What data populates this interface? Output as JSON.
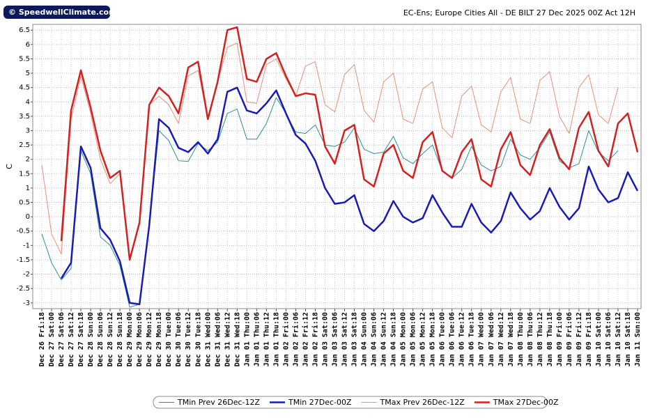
{
  "logo": "© SpeedwellClimate.com",
  "chart_data": {
    "type": "line",
    "title": "EC-Ens; Europe Cities All - DE BILT 27 Dec 2025 00Z Act 12H",
    "y_label": "C",
    "categories": [
      "Dec 26 Fri:18",
      "Dec 27 Sat:00",
      "Dec 27 Sat:06",
      "Dec 27 Sat:12",
      "Dec 27 Sat:18",
      "Dec 28 Sun:00",
      "Dec 28 Sun:06",
      "Dec 28 Sun:12",
      "Dec 28 Sun:18",
      "Dec 29 Mon:00",
      "Dec 29 Mon:06",
      "Dec 29 Mon:12",
      "Dec 29 Mon:18",
      "Dec 30 Tue:00",
      "Dec 30 Tue:06",
      "Dec 30 Tue:12",
      "Dec 30 Tue:18",
      "Dec 31 Wed:00",
      "Dec 31 Wed:06",
      "Dec 31 Wed:12",
      "Dec 31 Wed:18",
      "Jan 01 Thu:00",
      "Jan 01 Thu:06",
      "Jan 01 Thu:12",
      "Jan 01 Thu:18",
      "Jan 02 Fri:00",
      "Jan 02 Fri:06",
      "Jan 02 Fri:12",
      "Jan 02 Fri:18",
      "Jan 03 Sat:00",
      "Jan 03 Sat:06",
      "Jan 03 Sat:12",
      "Jan 03 Sat:18",
      "Jan 04 Sun:00",
      "Jan 04 Sun:06",
      "Jan 04 Sun:12",
      "Jan 04 Sun:18",
      "Jan 05 Mon:00",
      "Jan 05 Mon:06",
      "Jan 05 Mon:12",
      "Jan 05 Mon:18",
      "Jan 06 Tue:00",
      "Jan 06 Tue:06",
      "Jan 06 Tue:12",
      "Jan 06 Tue:18",
      "Jan 07 Wed:00",
      "Jan 07 Wed:06",
      "Jan 07 Wed:12",
      "Jan 07 Wed:18",
      "Jan 08 Thu:00",
      "Jan 08 Thu:06",
      "Jan 08 Thu:12",
      "Jan 08 Thu:18",
      "Jan 09 Fri:00",
      "Jan 09 Fri:06",
      "Jan 09 Fri:12",
      "Jan 09 Fri:18",
      "Jan 10 Sat:00",
      "Jan 10 Sat:06",
      "Jan 10 Sat:12",
      "Jan 10 Sat:18",
      "Jan 11 Sun:00"
    ],
    "series": [
      {
        "name": "TMin Prev 26Dec-12Z",
        "color": "#2e8f8f",
        "width": 1,
        "values": [
          -0.6,
          -1.6,
          -2.2,
          -1.8,
          2.3,
          1.5,
          -0.7,
          -1.0,
          -1.7,
          -3.15,
          -3.05,
          -0.3,
          3.0,
          2.65,
          1.95,
          1.93,
          2.55,
          2.3,
          2.6,
          3.6,
          3.75,
          2.7,
          2.7,
          3.25,
          4.15,
          3.6,
          2.95,
          2.9,
          3.2,
          2.5,
          2.45,
          2.6,
          3.1,
          2.35,
          2.2,
          2.25,
          2.8,
          2.05,
          1.85,
          2.2,
          2.5,
          1.6,
          1.35,
          1.65,
          2.45,
          1.8,
          1.6,
          1.75,
          2.7,
          2.15,
          2.0,
          2.4,
          2.95,
          1.95,
          1.7,
          1.85,
          3.0,
          2.25,
          1.95,
          2.3,
          null,
          null
        ]
      },
      {
        "name": "TMin 27Dec-00Z",
        "color": "#1a1ab4",
        "width": 2.5,
        "values": [
          null,
          null,
          -2.15,
          -1.6,
          2.45,
          1.7,
          -0.4,
          -0.8,
          -1.55,
          -3.0,
          -3.05,
          -0.3,
          3.4,
          3.1,
          2.4,
          2.25,
          2.6,
          2.2,
          2.7,
          4.35,
          4.5,
          3.7,
          3.6,
          3.95,
          4.4,
          3.6,
          2.85,
          2.55,
          1.95,
          1.0,
          0.45,
          0.5,
          0.75,
          -0.25,
          -0.5,
          -0.15,
          0.55,
          0.0,
          -0.2,
          -0.05,
          0.75,
          0.15,
          -0.35,
          -0.35,
          0.45,
          -0.2,
          -0.55,
          -0.15,
          0.85,
          0.3,
          -0.1,
          0.2,
          1.0,
          0.35,
          -0.1,
          0.3,
          1.75,
          0.95,
          0.5,
          0.65,
          1.55,
          0.9
        ]
      },
      {
        "name": "TMax Prev 26Dec-12Z",
        "color": "#e8907a",
        "width": 1,
        "values": [
          1.8,
          -0.6,
          -1.3,
          3.4,
          4.9,
          3.6,
          2.0,
          1.15,
          1.5,
          -1.5,
          -0.2,
          3.9,
          4.2,
          3.9,
          3.25,
          4.9,
          5.1,
          3.4,
          4.7,
          5.9,
          6.05,
          4.0,
          3.95,
          5.3,
          5.5,
          4.8,
          4.2,
          5.25,
          5.4,
          3.9,
          3.65,
          4.95,
          5.3,
          3.7,
          3.3,
          4.7,
          5.0,
          3.4,
          3.25,
          4.45,
          4.7,
          3.1,
          2.75,
          4.2,
          4.55,
          3.2,
          2.95,
          4.35,
          4.85,
          3.4,
          3.25,
          4.75,
          5.05,
          3.5,
          2.9,
          4.5,
          4.95,
          3.55,
          3.25,
          4.5,
          null,
          null
        ]
      },
      {
        "name": "TMax 27Dec-00Z",
        "color": "#d42020",
        "width": 2.5,
        "values": [
          null,
          null,
          -0.85,
          3.7,
          5.1,
          3.8,
          2.3,
          1.35,
          1.6,
          -1.5,
          -0.2,
          3.9,
          4.5,
          4.2,
          3.6,
          5.2,
          5.4,
          3.4,
          4.7,
          6.5,
          6.6,
          4.8,
          4.7,
          5.5,
          5.7,
          4.9,
          4.2,
          4.3,
          4.25,
          2.45,
          1.85,
          3.0,
          3.2,
          1.3,
          1.05,
          2.2,
          2.5,
          1.6,
          1.35,
          2.6,
          2.95,
          1.6,
          1.35,
          2.25,
          2.7,
          1.3,
          1.05,
          2.35,
          2.95,
          1.8,
          1.45,
          2.5,
          3.05,
          2.05,
          1.65,
          3.1,
          3.65,
          2.3,
          1.75,
          3.25,
          3.6,
          2.25
        ]
      }
    ],
    "ylim": [
      -3.2,
      6.7
    ],
    "yticks": [
      -3,
      -2.5,
      -2,
      -1.5,
      -1,
      -0.5,
      0,
      0.5,
      1,
      1.5,
      2,
      2.5,
      3,
      3.5,
      4,
      4.5,
      5,
      5.5,
      6,
      6.5
    ],
    "grid": true
  }
}
